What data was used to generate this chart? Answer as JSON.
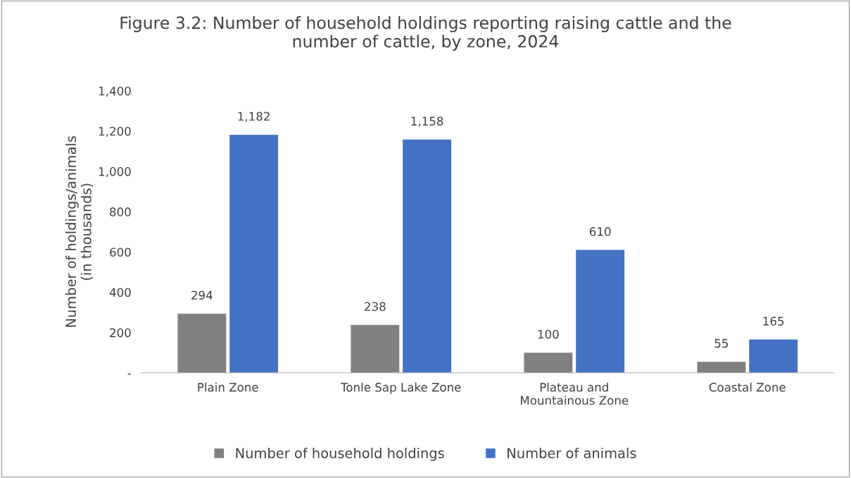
{
  "chart_data": {
    "type": "bar",
    "title": "Figure 3.2: Number of household holdings reporting raising cattle and the\nnumber of cattle, by zone, 2024",
    "ylabel": "Number of holdings/animals\n(in thousands)",
    "categories": [
      "Plain Zone",
      "Tonle Sap Lake Zone",
      "Plateau and\nMountainous Zone",
      "Coastal Zone"
    ],
    "series": [
      {
        "name": "Number of household holdings",
        "color": "#808080",
        "values": [
          294,
          238,
          100,
          55
        ],
        "value_labels": [
          "294",
          "238",
          "100",
          "55"
        ]
      },
      {
        "name": "Number of animals",
        "color": "#4472c4",
        "values": [
          1182,
          1158,
          610,
          165
        ],
        "value_labels": [
          "1,182",
          "1,158",
          "610",
          "165"
        ]
      }
    ],
    "ylim": [
      0,
      1400
    ],
    "yticks": [
      {
        "value": 0,
        "label": "-"
      },
      200,
      400,
      600,
      800,
      {
        "value": 1000,
        "label": "1,000"
      },
      {
        "value": 1200,
        "label": "1,200"
      },
      {
        "value": 1400,
        "label": "1,400"
      }
    ],
    "grid": false,
    "legend": "bottom"
  }
}
